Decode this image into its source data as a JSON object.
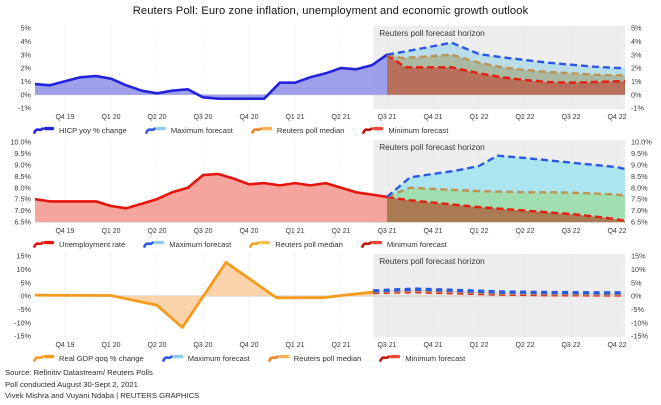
{
  "title": "Reuters Poll: Euro zone inflation, unemployment and economic growth outlook",
  "quarters": [
    "Q4 19",
    "Q1 20",
    "Q2 20",
    "Q3 20",
    "Q4 20",
    "Q1 21",
    "Q2 21",
    "Q3 21",
    "Q4 21",
    "Q1 22",
    "Q2 22",
    "Q3 22",
    "Q4 22"
  ],
  "horizon": {
    "label": "Reuters poll forecast horizon",
    "start_q": 6.7,
    "bg_color": "#EDEDED"
  },
  "footer": {
    "source": "Source: Refinitiv Datastream/ Reuters Polls",
    "poll": "Poll conducted August 30-Sept 2, 2021",
    "byline": "Vivek Mishra and Vuyani Ndaba | REUTERS GRAPHICS"
  },
  "chart_data": [
    {
      "id": "inflation",
      "type": "line",
      "title": "HICP yoy % change",
      "ylim": [
        -1,
        5
      ],
      "base_line": 0,
      "fill_base": 0,
      "yticks": [
        [
          5,
          "5%"
        ],
        [
          4,
          "4%"
        ],
        [
          3,
          "3%"
        ],
        [
          2,
          "2%"
        ],
        [
          1,
          "1%"
        ],
        [
          0,
          "0%"
        ],
        [
          -1,
          "-1%"
        ]
      ],
      "series": {
        "history": {
          "name": "HICP yoy % change",
          "color": "#2323DC",
          "fill": "#9496E8",
          "points": [
            [
              -0.67,
              0.8
            ],
            [
              -0.33,
              0.7
            ],
            [
              0,
              1.0
            ],
            [
              0.33,
              1.3
            ],
            [
              0.67,
              1.4
            ],
            [
              1,
              1.2
            ],
            [
              1.33,
              0.7
            ],
            [
              1.67,
              0.3
            ],
            [
              2,
              0.1
            ],
            [
              2.33,
              0.3
            ],
            [
              2.67,
              0.4
            ],
            [
              3,
              -0.2
            ],
            [
              3.33,
              -0.3
            ],
            [
              3.67,
              -0.3
            ],
            [
              4,
              -0.3
            ],
            [
              4.33,
              -0.3
            ],
            [
              4.67,
              0.9
            ],
            [
              5,
              0.9
            ],
            [
              5.33,
              1.3
            ],
            [
              5.67,
              1.6
            ],
            [
              6,
              2.0
            ],
            [
              6.33,
              1.9
            ],
            [
              6.67,
              2.2
            ],
            [
              7,
              3.0
            ]
          ]
        },
        "max": {
          "name": "Maximum forecast",
          "color": "#2B59E6",
          "points": [
            [
              7,
              3.0
            ],
            [
              7.33,
              3.2
            ],
            [
              7.8,
              3.5
            ],
            [
              8.4,
              3.9
            ],
            [
              9,
              3.05
            ],
            [
              9.5,
              2.8
            ],
            [
              10,
              2.6
            ],
            [
              10.5,
              2.4
            ],
            [
              11,
              2.25
            ],
            [
              11.5,
              2.1
            ],
            [
              12,
              2.0
            ],
            [
              12.2,
              2.0
            ]
          ]
        },
        "median": {
          "name": "Reuters poll median",
          "color": "#BE9455",
          "points": [
            [
              7,
              3.0
            ],
            [
              7.33,
              2.75
            ],
            [
              7.8,
              2.85
            ],
            [
              8.4,
              3.0
            ],
            [
              9,
              2.4
            ],
            [
              9.5,
              2.05
            ],
            [
              10,
              1.85
            ],
            [
              10.5,
              1.7
            ],
            [
              11,
              1.6
            ],
            [
              11.5,
              1.5
            ],
            [
              12,
              1.45
            ],
            [
              12.2,
              1.45
            ]
          ]
        },
        "min": {
          "name": "Minimum forecast",
          "color": "#E51E10",
          "points": [
            [
              7,
              3.0
            ],
            [
              7.4,
              2.05
            ],
            [
              8.4,
              2.05
            ],
            [
              9,
              1.6
            ],
            [
              9.5,
              1.3
            ],
            [
              10,
              1.1
            ],
            [
              10.5,
              0.95
            ],
            [
              11,
              0.9
            ],
            [
              11.5,
              0.95
            ],
            [
              12,
              1.0
            ],
            [
              12.2,
              1.0
            ]
          ]
        }
      },
      "fills": {
        "max_median": "#B9DEE9",
        "median_min": "#AAB9A1",
        "min_base": "#B7705C"
      },
      "legend": [
        {
          "label": "HICP yoy % change",
          "main": "#2323DC",
          "accent": "#2323DC"
        },
        {
          "label": "Maximum forecast",
          "main": "#2B59E6",
          "accent": "#8FCBEC"
        },
        {
          "label": "Reuters poll median",
          "main": "#F08124",
          "accent": "#F7B055"
        },
        {
          "label": "Minimum forecast",
          "main": "#C81508",
          "accent": "#F0453A"
        }
      ]
    },
    {
      "id": "unemployment",
      "type": "line",
      "title": "Unemployment rate",
      "ylim": [
        6.5,
        10
      ],
      "base_line": 6.5,
      "fill_base": 6.5,
      "yticks": [
        [
          10,
          "10.0%"
        ],
        [
          9.5,
          "9.5%"
        ],
        [
          9,
          "9.0%"
        ],
        [
          8.5,
          "8.5%"
        ],
        [
          8,
          "8.0%"
        ],
        [
          7.5,
          "7.5%"
        ],
        [
          7,
          "7.0%"
        ],
        [
          6.5,
          "6.5%"
        ]
      ],
      "series": {
        "history": {
          "name": "Unemployment rate",
          "color": "#E6150C",
          "fill": "#F29B93",
          "points": [
            [
              -0.67,
              7.5
            ],
            [
              -0.33,
              7.4
            ],
            [
              0,
              7.4
            ],
            [
              0.33,
              7.4
            ],
            [
              0.67,
              7.4
            ],
            [
              1,
              7.2
            ],
            [
              1.33,
              7.1
            ],
            [
              1.67,
              7.3
            ],
            [
              2,
              7.5
            ],
            [
              2.33,
              7.8
            ],
            [
              2.67,
              8.0
            ],
            [
              3,
              8.55
            ],
            [
              3.33,
              8.6
            ],
            [
              3.67,
              8.4
            ],
            [
              4,
              8.15
            ],
            [
              4.33,
              8.2
            ],
            [
              4.67,
              8.1
            ],
            [
              5,
              8.2
            ],
            [
              5.33,
              8.1
            ],
            [
              5.67,
              8.2
            ],
            [
              6,
              8.0
            ],
            [
              6.33,
              7.8
            ],
            [
              6.67,
              7.7
            ],
            [
              7,
              7.6
            ]
          ]
        },
        "max": {
          "name": "Maximum forecast",
          "color": "#2B59E6",
          "points": [
            [
              7,
              7.6
            ],
            [
              7.5,
              8.45
            ],
            [
              8,
              8.6
            ],
            [
              8.5,
              8.75
            ],
            [
              9,
              8.95
            ],
            [
              9.4,
              9.4
            ],
            [
              10,
              9.3
            ],
            [
              10.5,
              9.2
            ],
            [
              11,
              9.1
            ],
            [
              11.5,
              9.0
            ],
            [
              12,
              8.9
            ],
            [
              12.2,
              8.8
            ]
          ]
        },
        "median": {
          "name": "Reuters poll median",
          "color": "#BE9455",
          "points": [
            [
              7,
              7.6
            ],
            [
              7.5,
              8.0
            ],
            [
              8,
              7.95
            ],
            [
              9,
              7.85
            ],
            [
              10,
              7.8
            ],
            [
              10.7,
              7.8
            ],
            [
              11.5,
              7.75
            ],
            [
              12,
              7.7
            ],
            [
              12.2,
              7.65
            ]
          ]
        },
        "min": {
          "name": "Minimum forecast",
          "color": "#E51E10",
          "points": [
            [
              7,
              7.6
            ],
            [
              7.5,
              7.45
            ],
            [
              8,
              7.35
            ],
            [
              9,
              7.15
            ],
            [
              10,
              7.0
            ],
            [
              11,
              6.85
            ],
            [
              11.7,
              6.7
            ],
            [
              12.2,
              6.55
            ]
          ]
        }
      },
      "fills": {
        "max_median": "#ABE5F0",
        "median_min": "#A0DDB1",
        "min_base": "#AA7B52"
      },
      "legend": [
        {
          "label": "Unemployment rate",
          "main": "#E6150C",
          "accent": "#E6150C"
        },
        {
          "label": "Maximum forecast",
          "main": "#2B59E6",
          "accent": "#8FCBEC"
        },
        {
          "label": "Reuters poll median",
          "main": "#F0A124",
          "accent": "#F7C055"
        },
        {
          "label": "Minimum forecast",
          "main": "#C81508",
          "accent": "#F0453A"
        }
      ]
    },
    {
      "id": "gdp",
      "type": "line",
      "title": "Real GDP qoq % change",
      "ylim": [
        -15,
        15
      ],
      "base_line": 0,
      "fill_base": 0,
      "yticks": [
        [
          15,
          "15%"
        ],
        [
          10,
          "10%"
        ],
        [
          5,
          "5%"
        ],
        [
          0,
          "0%"
        ],
        [
          -5,
          "-5%"
        ],
        [
          -10,
          "-10%"
        ],
        [
          -15,
          "-15%"
        ]
      ],
      "series": {
        "history": {
          "name": "Real GDP qoq % change",
          "color": "#F59B1E",
          "fill": "#FBCFA2",
          "points": [
            [
              -0.7,
              0.3
            ],
            [
              1.0,
              0.2
            ],
            [
              2.0,
              -3.5
            ],
            [
              2.55,
              -11.8
            ],
            [
              3.5,
              12.6
            ],
            [
              4.6,
              -0.7
            ],
            [
              5.6,
              -0.6
            ],
            [
              6.7,
              1.5
            ]
          ]
        },
        "max": {
          "name": "Maximum forecast",
          "color": "#2B59E6",
          "points": [
            [
              6.7,
              1.9
            ],
            [
              7.6,
              2.6
            ],
            [
              8.5,
              2.1
            ],
            [
              9.5,
              1.5
            ],
            [
              10.5,
              1.3
            ],
            [
              11.5,
              1.2
            ],
            [
              12.2,
              1.2
            ]
          ]
        },
        "median": {
          "name": "Reuters poll median",
          "color": "#BE9455",
          "points": [
            [
              6.7,
              1.6
            ],
            [
              7.6,
              2.1
            ],
            [
              8.5,
              1.7
            ],
            [
              9.5,
              1.1
            ],
            [
              10.5,
              0.9
            ],
            [
              11.5,
              0.8
            ],
            [
              12.2,
              0.8
            ]
          ]
        },
        "min": {
          "name": "Minimum forecast",
          "color": "#E51E10",
          "points": [
            [
              6.7,
              1.3
            ],
            [
              7.6,
              1.6
            ],
            [
              8.5,
              1.2
            ],
            [
              9.5,
              0.7
            ],
            [
              10.5,
              0.5
            ],
            [
              11.5,
              0.4
            ],
            [
              12.2,
              0.4
            ]
          ]
        }
      },
      "fills": {
        "max_median": "#C8E8EF",
        "median_min": "#F4C9B2",
        "min_base": null
      },
      "legend": [
        {
          "label": "Real GDP qoq % change",
          "main": "#F59B1E",
          "accent": "#F59B1E"
        },
        {
          "label": "Maximum forecast",
          "main": "#2B59E6",
          "accent": "#8FCBEC"
        },
        {
          "label": "Reuters poll median",
          "main": "#F08124",
          "accent": "#F7B055"
        },
        {
          "label": "Minimum forecast",
          "main": "#C81508",
          "accent": "#F0453A"
        }
      ]
    }
  ]
}
